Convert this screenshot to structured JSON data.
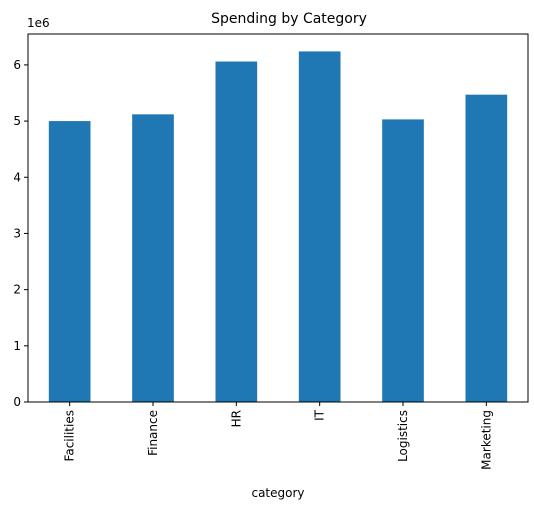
{
  "chart_data": {
    "type": "bar",
    "title": "Spending by Category",
    "xlabel": "category",
    "ylabel": "",
    "y_offset_text": "1e6",
    "categories": [
      "Facilities",
      "Finance",
      "HR",
      "IT",
      "Logistics",
      "Marketing"
    ],
    "values": [
      5000000,
      5120000,
      6060000,
      6240000,
      5030000,
      5470000
    ],
    "ylim": [
      0,
      6550000
    ],
    "yticks": [
      0,
      1000000,
      2000000,
      3000000,
      4000000,
      5000000,
      6000000
    ],
    "ytick_labels": [
      "0",
      "1",
      "2",
      "3",
      "4",
      "5",
      "6"
    ],
    "grid": false,
    "legend": "none",
    "bar_color": "#1f77b4"
  }
}
